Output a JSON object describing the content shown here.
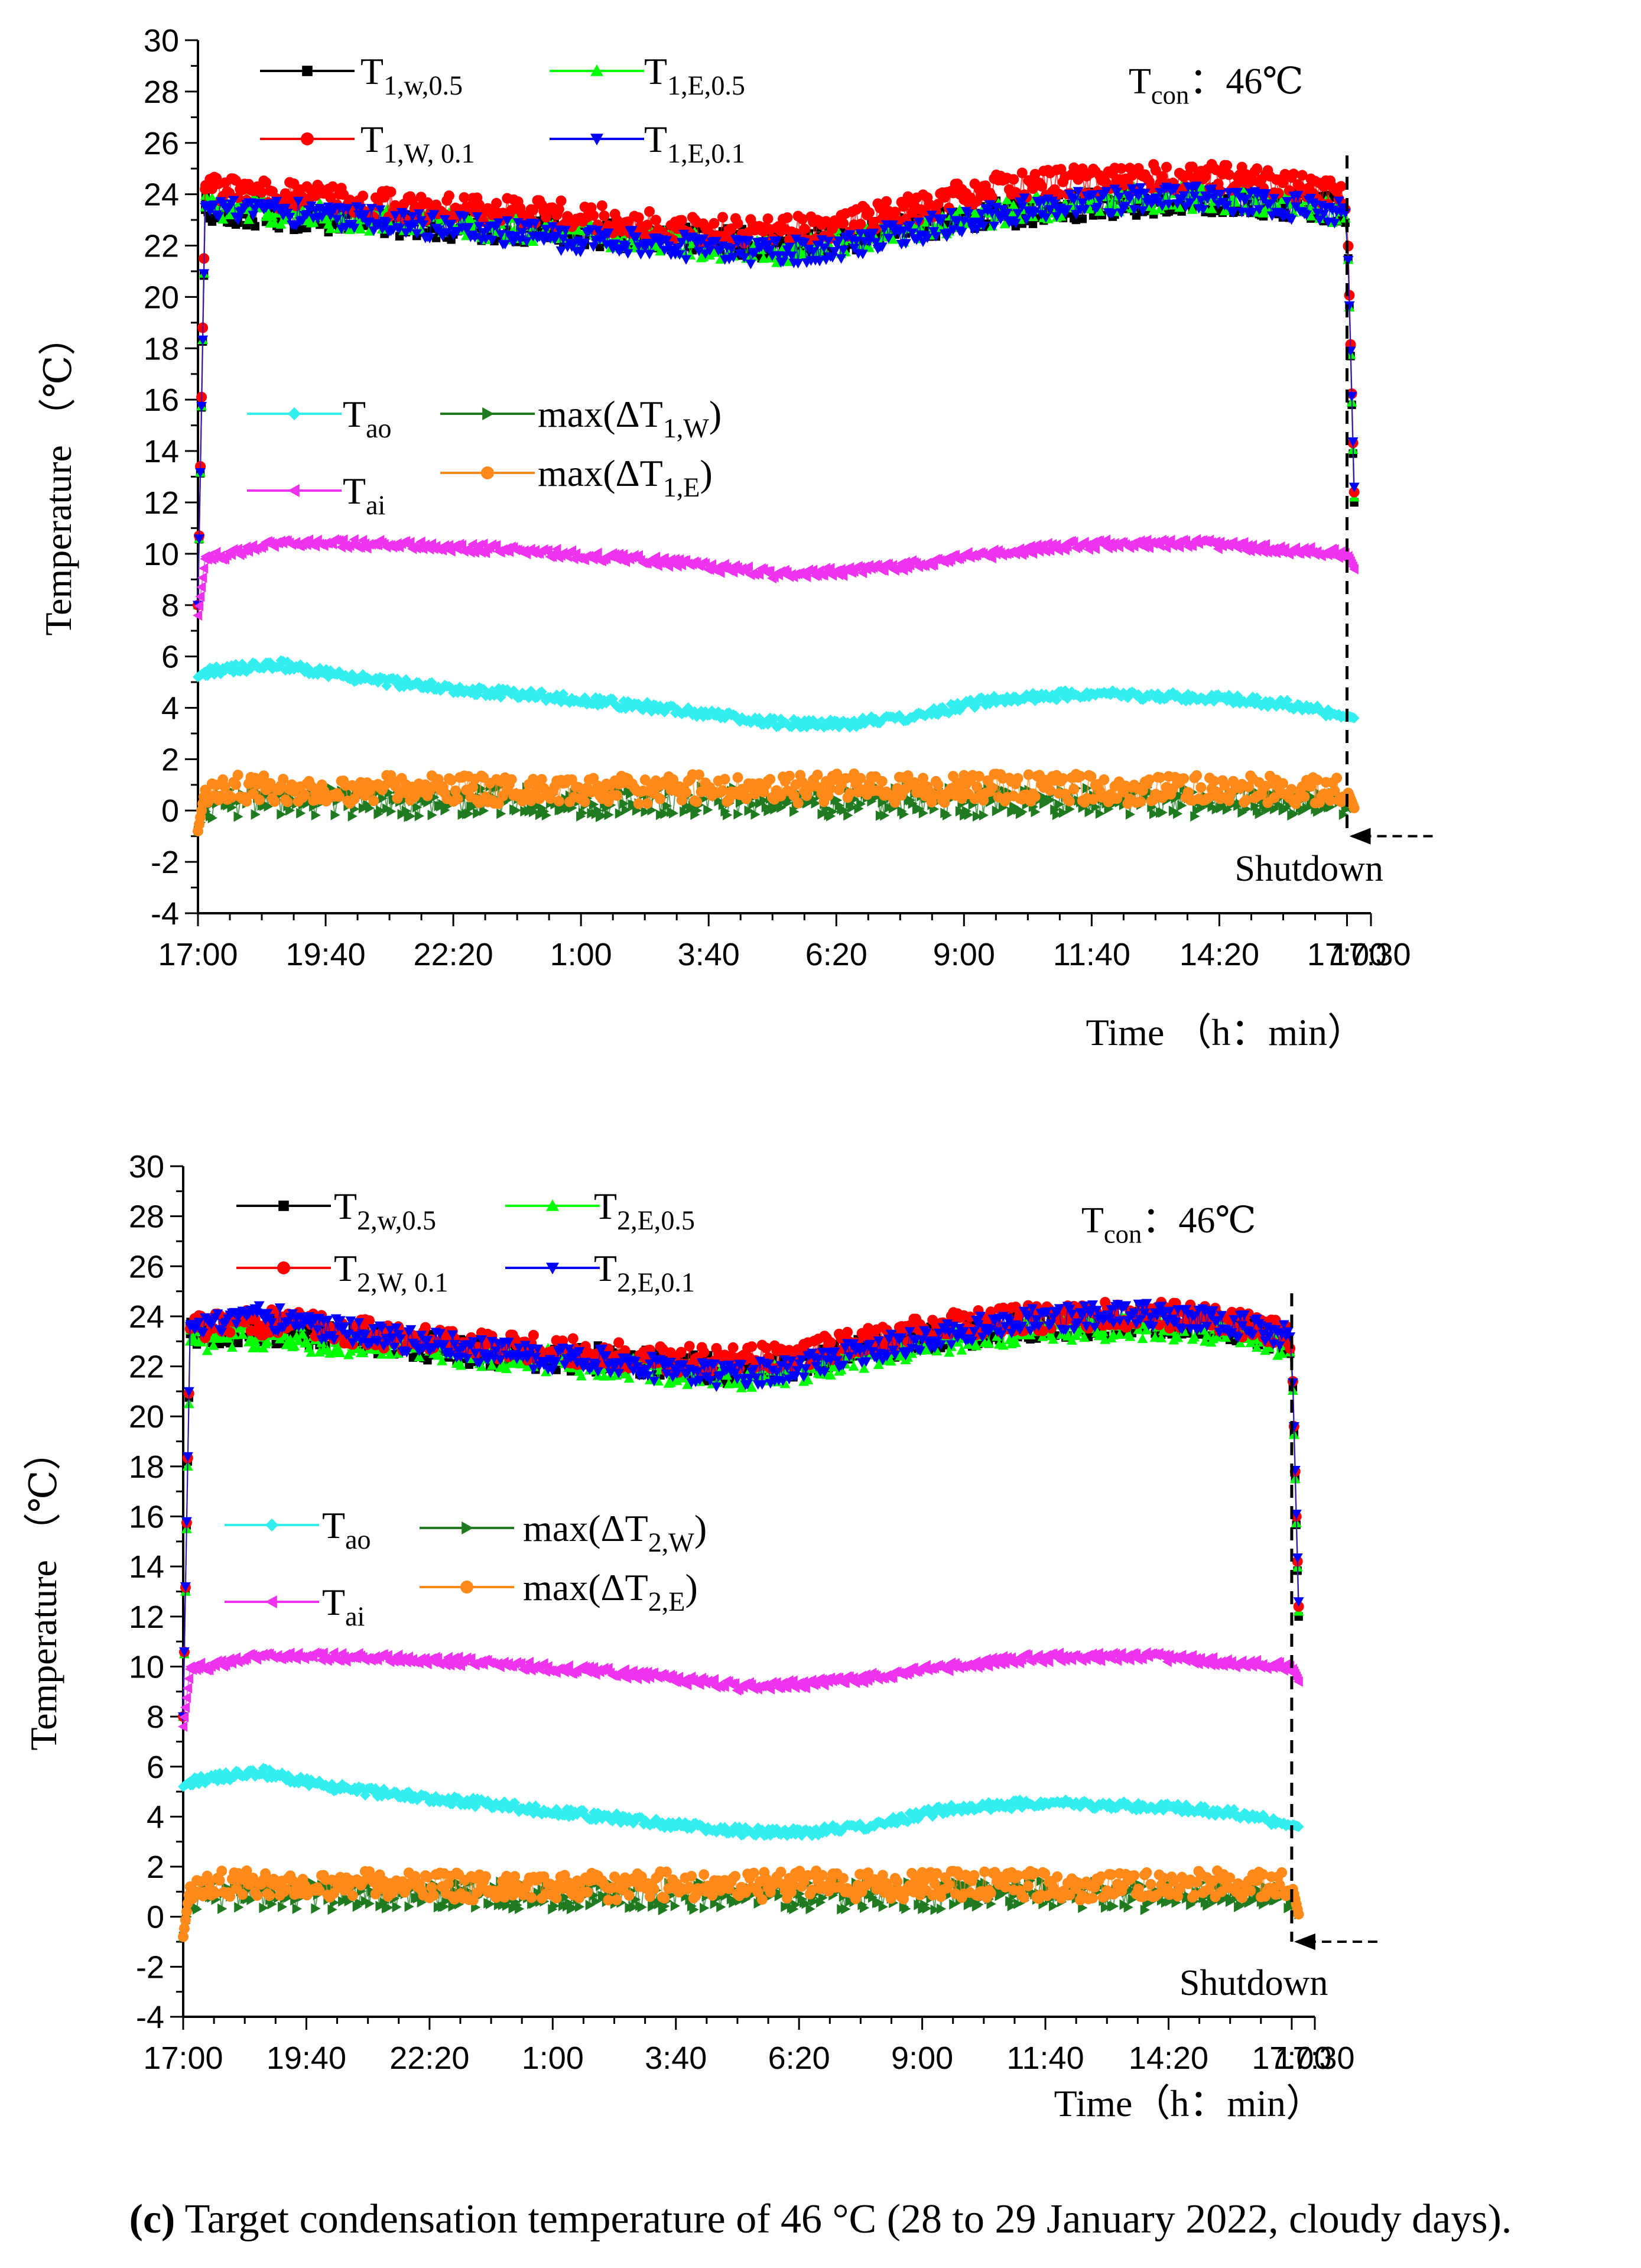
{
  "caption": {
    "label": "(c)",
    "text": "Target condensation temperature of 46 °C (28 to 29 January 2022, cloudy days)."
  },
  "chart_data": [
    {
      "type": "scatter",
      "panel": "top",
      "ylabel": "Temperature （℃）",
      "xlabel": "Time （h：min）",
      "ylim": [
        -4,
        30
      ],
      "yticks": [
        "-4",
        "-2",
        "0",
        "2",
        "4",
        "6",
        "8",
        "10",
        "12",
        "14",
        "16",
        "18",
        "20",
        "22",
        "24",
        "26",
        "28",
        "30"
      ],
      "xticks": [
        "17:00",
        "19:40",
        "22:20",
        "1:00",
        "3:40",
        "6:20",
        "9:00",
        "11:40",
        "14:20",
        "17:00",
        "17:30"
      ],
      "xlim_hours": [
        0,
        24.5
      ],
      "annotation_tcon": {
        "main": "T",
        "sub": "con",
        "value": "：46℃"
      },
      "shutdown_label": "Shutdown",
      "shutdown_hour": 24,
      "series": [
        {
          "name": "T1,w,0.5",
          "main": "T",
          "sub": "1,w,0.5",
          "color": "#000000",
          "marker": "square",
          "values": [
            23.4,
            23.2,
            23.0,
            22.8,
            22.7,
            22.6,
            22.4,
            22.2,
            22.0,
            22.3,
            22.7,
            23.2,
            23.5,
            23.7,
            23.8,
            23.6,
            23.4
          ]
        },
        {
          "name": "T1,E,0.5",
          "main": "T",
          "sub": "1,E,0.5",
          "color": "#00ff00",
          "marker": "triangle-up",
          "values": [
            23.5,
            23.3,
            23.1,
            22.9,
            22.7,
            22.6,
            22.3,
            22.0,
            21.8,
            22.2,
            22.7,
            23.2,
            23.6,
            23.8,
            23.9,
            23.7,
            23.3
          ]
        },
        {
          "name": "T1,W,0.1",
          "main": "T",
          "sub": "1,W, 0.1",
          "color": "#ff0000",
          "marker": "circle",
          "values": [
            24.2,
            24.0,
            23.7,
            23.5,
            23.4,
            23.2,
            22.9,
            22.6,
            22.5,
            22.9,
            23.5,
            24.2,
            24.5,
            24.6,
            24.7,
            24.4,
            23.9
          ]
        },
        {
          "name": "T1,E,0.1",
          "main": "T",
          "sub": "1,E,0.1",
          "color": "#0000ff",
          "marker": "triangle-down",
          "values": [
            23.5,
            23.3,
            23.1,
            22.8,
            22.6,
            22.3,
            22.1,
            21.9,
            21.7,
            22.0,
            22.6,
            23.2,
            23.6,
            23.8,
            23.9,
            23.6,
            23.2
          ]
        },
        {
          "name": "Tao",
          "main": "T",
          "sub": "ao",
          "color": "#33eeee",
          "marker": "diamond",
          "values": [
            5.4,
            5.7,
            5.2,
            4.9,
            4.6,
            4.4,
            4.1,
            3.8,
            3.4,
            3.4,
            3.7,
            4.3,
            4.5,
            4.5,
            4.4,
            4.2,
            3.7
          ]
        },
        {
          "name": "Tai",
          "main": "T",
          "sub": "ai",
          "color": "#ee33ee",
          "marker": "triangle-left",
          "values": [
            9.8,
            10.4,
            10.4,
            10.3,
            10.2,
            10.0,
            9.8,
            9.5,
            9.2,
            9.3,
            9.6,
            10.0,
            10.3,
            10.4,
            10.4,
            10.2,
            10.0
          ]
        },
        {
          "name": "max(ΔT1,W)",
          "main": "max(ΔT",
          "sub": "1,W",
          "post": ")",
          "color": "#207a20",
          "marker": "triangle-right",
          "values": [
            0.2,
            0.4,
            0.3,
            0.3,
            0.4,
            0.3,
            0.3,
            0.4,
            0.3,
            0.3,
            0.4,
            0.3,
            0.3,
            0.4,
            0.3,
            0.3,
            0.3
          ]
        },
        {
          "name": "max(ΔT1,E)",
          "main": "max(ΔT",
          "sub": "1,E",
          "post": ")",
          "color": "#ff8a1a",
          "marker": "circle",
          "values": [
            0.8,
            0.9,
            0.8,
            0.9,
            0.8,
            0.9,
            0.8,
            0.9,
            0.8,
            0.9,
            0.8,
            0.9,
            0.9,
            0.8,
            0.9,
            0.8,
            0.8
          ]
        }
      ]
    },
    {
      "type": "scatter",
      "panel": "bottom",
      "ylabel": "Temperature （℃）",
      "xlabel": "Time（h：min）",
      "ylim": [
        -4,
        30
      ],
      "yticks": [
        "-4",
        "-2",
        "0",
        "2",
        "4",
        "6",
        "8",
        "10",
        "12",
        "14",
        "16",
        "18",
        "20",
        "22",
        "24",
        "26",
        "28",
        "30"
      ],
      "xticks": [
        "17:00",
        "19:40",
        "22:20",
        "1:00",
        "3:40",
        "6:20",
        "9:00",
        "11:40",
        "14:20",
        "17:00",
        "17:30"
      ],
      "xlim_hours": [
        0,
        24.5
      ],
      "annotation_tcon": {
        "main": "T",
        "sub": "con",
        "value": "：46℃"
      },
      "shutdown_label": "Shutdown",
      "shutdown_hour": 24,
      "series": [
        {
          "name": "T2,w,0.5",
          "main": "T",
          "sub": "2,w,0.5",
          "color": "#000000",
          "marker": "square",
          "values": [
            23.3,
            23.5,
            23.2,
            22.9,
            22.6,
            22.4,
            22.3,
            22.0,
            21.8,
            22.2,
            22.7,
            23.2,
            23.6,
            23.7,
            23.8,
            23.6,
            23.0
          ]
        },
        {
          "name": "T2,E,0.5",
          "main": "T",
          "sub": "2,E,0.5",
          "color": "#00ff00",
          "marker": "triangle-up",
          "values": [
            23.0,
            23.2,
            23.0,
            22.8,
            22.5,
            22.3,
            22.0,
            21.8,
            21.6,
            21.9,
            22.5,
            23.0,
            23.4,
            23.5,
            23.6,
            23.4,
            22.8
          ]
        },
        {
          "name": "T2,W,0.1",
          "main": "T",
          "sub": "2,W, 0.1",
          "color": "#ff0000",
          "marker": "circle",
          "values": [
            23.5,
            23.8,
            23.5,
            23.2,
            22.9,
            22.7,
            22.5,
            22.3,
            22.2,
            22.6,
            23.1,
            23.6,
            23.9,
            24.0,
            24.1,
            23.8,
            23.2
          ]
        },
        {
          "name": "T2,E,0.1",
          "main": "T",
          "sub": "2,E,0.1",
          "color": "#0000ff",
          "marker": "triangle-down",
          "values": [
            23.6,
            24.0,
            23.5,
            23.1,
            22.7,
            22.4,
            22.2,
            21.8,
            21.6,
            22.1,
            22.7,
            23.3,
            23.8,
            24.0,
            24.1,
            23.8,
            23.1
          ]
        },
        {
          "name": "Tao",
          "main": "T",
          "sub": "ao",
          "color": "#33eeee",
          "marker": "diamond",
          "values": [
            5.4,
            5.8,
            5.2,
            4.9,
            4.6,
            4.3,
            4.0,
            3.7,
            3.4,
            3.4,
            3.7,
            4.3,
            4.5,
            4.5,
            4.4,
            4.2,
            3.7
          ]
        },
        {
          "name": "Tai",
          "main": "T",
          "sub": "ai",
          "color": "#ee33ee",
          "marker": "triangle-left",
          "values": [
            9.9,
            10.4,
            10.4,
            10.3,
            10.2,
            10.0,
            9.8,
            9.5,
            9.2,
            9.3,
            9.6,
            10.0,
            10.3,
            10.4,
            10.4,
            10.2,
            10.0
          ]
        },
        {
          "name": "max(ΔT2,W)",
          "main": "max(ΔT",
          "sub": "2,W",
          "post": ")",
          "color": "#207a20",
          "marker": "triangle-right",
          "values": [
            0.8,
            0.9,
            0.8,
            0.9,
            0.9,
            0.8,
            0.9,
            0.8,
            0.9,
            0.8,
            0.9,
            0.8,
            0.9,
            0.9,
            0.8,
            0.9,
            0.8
          ]
        },
        {
          "name": "max(ΔT2,E)",
          "main": "max(ΔT",
          "sub": "2,E",
          "post": ")",
          "color": "#ff8a1a",
          "marker": "circle",
          "values": [
            1.2,
            1.4,
            1.3,
            1.3,
            1.2,
            1.3,
            1.2,
            1.3,
            1.2,
            1.3,
            1.2,
            1.3,
            1.3,
            1.2,
            1.3,
            1.3,
            1.3
          ]
        }
      ]
    }
  ]
}
